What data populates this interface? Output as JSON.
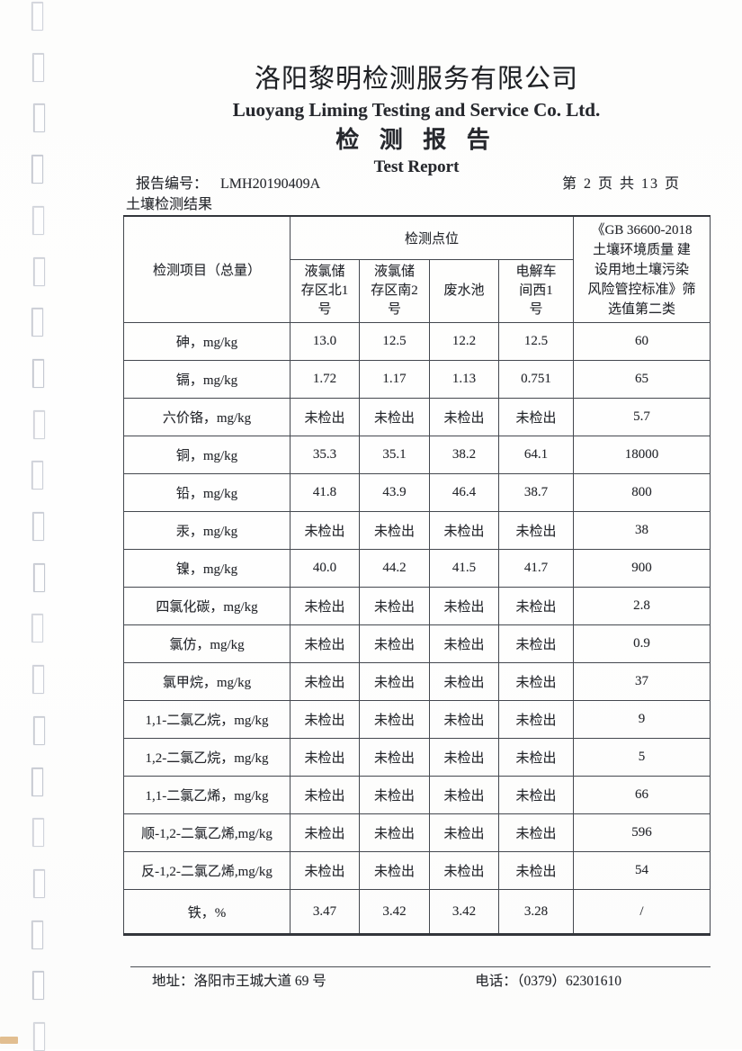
{
  "header": {
    "company_cn": "洛阳黎明检测服务有限公司",
    "company_en": "Luoyang Liming Testing and Service Co. Ltd.",
    "report_title_cn": "检 测 报 告",
    "report_title_en": "Test Report",
    "report_no_label": "报告编号：",
    "report_no": "LMH20190409A",
    "page_info": "第 2 页 共 13 页",
    "section_title": "土壤检测结果"
  },
  "table": {
    "item_header": "检测项目（总量）",
    "points_header": "检测点位",
    "point_columns": [
      "液氯储\n存区北1\n号",
      "液氯储\n存区南2\n号",
      "废水池",
      "电解车\n间西1\n号"
    ],
    "standard_header": "《GB 36600-2018\n土壤环境质量 建\n设用地土壤污染\n风险管控标准》筛\n选值第二类",
    "rows": [
      {
        "item": "砷，mg/kg",
        "values": [
          "13.0",
          "12.5",
          "12.2",
          "12.5"
        ],
        "limit": "60"
      },
      {
        "item": "镉，mg/kg",
        "values": [
          "1.72",
          "1.17",
          "1.13",
          "0.751"
        ],
        "limit": "65"
      },
      {
        "item": "六价铬，mg/kg",
        "values": [
          "未检出",
          "未检出",
          "未检出",
          "未检出"
        ],
        "limit": "5.7"
      },
      {
        "item": "铜，mg/kg",
        "values": [
          "35.3",
          "35.1",
          "38.2",
          "64.1"
        ],
        "limit": "18000"
      },
      {
        "item": "铅，mg/kg",
        "values": [
          "41.8",
          "43.9",
          "46.4",
          "38.7"
        ],
        "limit": "800"
      },
      {
        "item": "汞，mg/kg",
        "values": [
          "未检出",
          "未检出",
          "未检出",
          "未检出"
        ],
        "limit": "38"
      },
      {
        "item": "镍，mg/kg",
        "values": [
          "40.0",
          "44.2",
          "41.5",
          "41.7"
        ],
        "limit": "900"
      },
      {
        "item": "四氯化碳，mg/kg",
        "values": [
          "未检出",
          "未检出",
          "未检出",
          "未检出"
        ],
        "limit": "2.8"
      },
      {
        "item": "氯仿，mg/kg",
        "values": [
          "未检出",
          "未检出",
          "未检出",
          "未检出"
        ],
        "limit": "0.9"
      },
      {
        "item": "氯甲烷，mg/kg",
        "values": [
          "未检出",
          "未检出",
          "未检出",
          "未检出"
        ],
        "limit": "37"
      },
      {
        "item": "1,1-二氯乙烷，mg/kg",
        "values": [
          "未检出",
          "未检出",
          "未检出",
          "未检出"
        ],
        "limit": "9"
      },
      {
        "item": "1,2-二氯乙烷，mg/kg",
        "values": [
          "未检出",
          "未检出",
          "未检出",
          "未检出"
        ],
        "limit": "5"
      },
      {
        "item": "1,1-二氯乙烯，mg/kg",
        "values": [
          "未检出",
          "未检出",
          "未检出",
          "未检出"
        ],
        "limit": "66"
      },
      {
        "item": "顺-1,2-二氯乙烯,mg/kg",
        "values": [
          "未检出",
          "未检出",
          "未检出",
          "未检出"
        ],
        "limit": "596"
      },
      {
        "item": "反-1,2-二氯乙烯,mg/kg",
        "values": [
          "未检出",
          "未检出",
          "未检出",
          "未检出"
        ],
        "limit": "54"
      },
      {
        "item": "铁，%",
        "values": [
          "3.47",
          "3.42",
          "3.42",
          "3.28"
        ],
        "limit": "/"
      }
    ]
  },
  "footer": {
    "address_label": "地址：",
    "address": "洛阳市王城大道 69 号",
    "phone_label": "电话：",
    "phone": "（0379）62301610"
  }
}
